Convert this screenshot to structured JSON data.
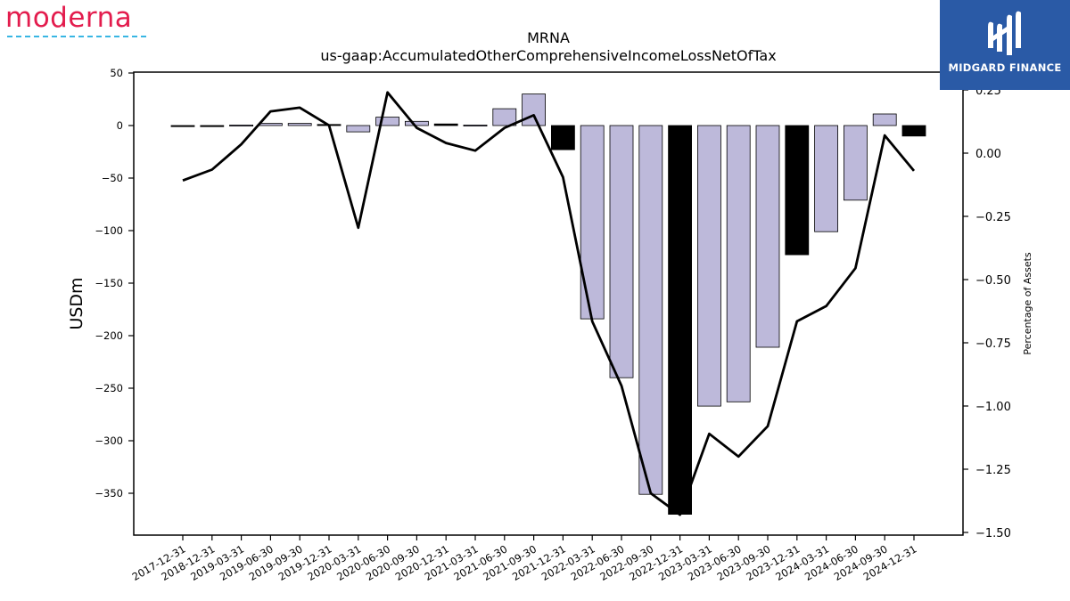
{
  "branding": {
    "left_logo": "moderna",
    "right_logo": "MIDGARD FINANCE"
  },
  "chart_data": {
    "type": "bar",
    "title": "MRNA",
    "subtitle": "us-gaap:AccumulatedOtherComprehensiveIncomeLossNetOfTax",
    "ylabel": "USDm",
    "y2label": "Percentage of Assets",
    "ylim": [
      -370,
      50
    ],
    "y2lim": [
      -1.5,
      0.31
    ],
    "yticks": [
      50,
      0,
      -50,
      -100,
      -150,
      -200,
      -250,
      -300,
      -350
    ],
    "y2ticks": [
      0.25,
      0.0,
      -0.25,
      -0.5,
      -0.75,
      -1.0,
      -1.25,
      -1.5
    ],
    "categories": [
      "2017-12-31",
      "2018-12-31",
      "2019-03-31",
      "2019-06-30",
      "2019-09-30",
      "2019-12-31",
      "2020-03-31",
      "2020-06-30",
      "2020-09-30",
      "2020-12-31",
      "2021-03-31",
      "2021-06-30",
      "2021-09-30",
      "2021-12-31",
      "2022-03-31",
      "2022-06-30",
      "2022-09-30",
      "2022-12-31",
      "2023-03-31",
      "2023-06-30",
      "2023-09-30",
      "2023-12-31",
      "2024-03-31",
      "2024-06-30",
      "2024-09-30",
      "2024-12-31"
    ],
    "series": [
      {
        "kind": "bar",
        "values": [
          -1,
          -1,
          0.5,
          2,
          2,
          1,
          -6,
          8,
          4,
          1.5,
          0.5,
          16,
          30,
          -23,
          -184,
          -240,
          -351,
          -370,
          -267,
          -263,
          -211,
          -123,
          -101,
          -71,
          11,
          -10
        ],
        "annual": [
          true,
          true,
          false,
          false,
          false,
          true,
          false,
          false,
          false,
          true,
          false,
          false,
          false,
          true,
          false,
          false,
          false,
          true,
          false,
          false,
          false,
          true,
          false,
          false,
          false,
          true
        ]
      },
      {
        "kind": "line",
        "axis": "y2",
        "values": [
          -0.108,
          -0.065,
          0.035,
          0.165,
          0.18,
          0.11,
          -0.295,
          0.24,
          0.1,
          0.04,
          0.01,
          0.1,
          0.15,
          -0.095,
          -0.665,
          -0.92,
          -1.345,
          -1.43,
          -1.11,
          -1.2,
          -1.08,
          -0.665,
          -0.605,
          -0.455,
          0.07,
          -0.07
        ]
      }
    ],
    "colors": {
      "bar_quarterly": "#bdb9da",
      "bar_annual": "#000000",
      "line": "#000000"
    }
  }
}
